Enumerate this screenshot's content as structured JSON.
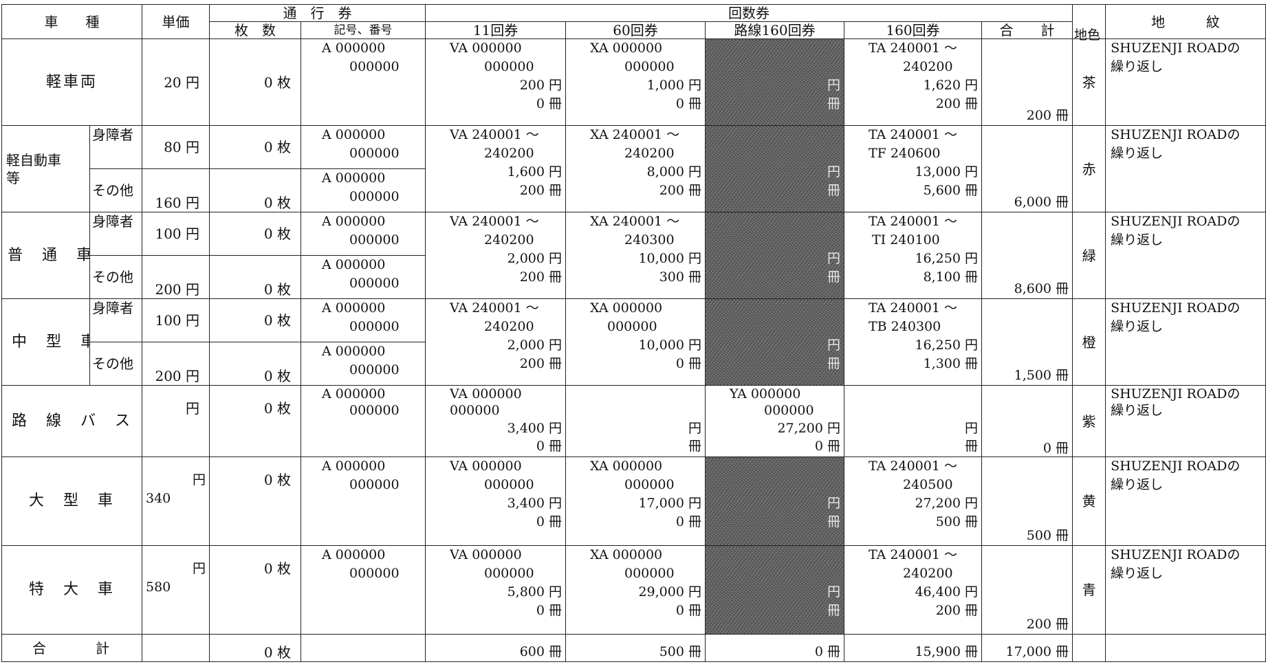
{
  "headers": {
    "vehicle_type": "車　　種",
    "unit_price": "単価",
    "pass_ticket": "通　行　券",
    "coupon": "回数券",
    "sheets": "枚　数",
    "code": "記号、番号",
    "t11": "11回券",
    "t60": "60回券",
    "route160": "路線160回券",
    "t160": "160回券",
    "total": "合　　計",
    "ground_color": "地色",
    "pattern": "地　　　紋"
  },
  "rows": {
    "keisharyo": {
      "label": "軽車両",
      "price": "20 円",
      "sheets": "0 枚",
      "code": [
        "A 000000",
        "000000"
      ],
      "t11": [
        "VA 000000",
        "000000",
        "200 円",
        "0 冊"
      ],
      "t60": [
        "XA 000000",
        "000000",
        "1,000 円",
        "0 冊"
      ],
      "route160": [
        "円",
        "冊"
      ],
      "t160": [
        "TA 240001 ～",
        "240200",
        "1,620 円",
        "200 冊"
      ],
      "total": "200 冊",
      "color": "茶",
      "pattern": [
        "SHUZENJI ROADの",
        "繰り返し"
      ]
    },
    "keijidosha": {
      "label": "軽自動車等",
      "label_line2": "等",
      "label_line1": "軽自動車",
      "sub1": "身障者",
      "sub2": "その他",
      "price1": "80 円",
      "price2": "160 円",
      "sheets1": "0 枚",
      "sheets2": "0 枚",
      "code1": [
        "A 000000",
        "000000"
      ],
      "code2": [
        "A 000000",
        "000000"
      ],
      "t11": [
        "VA 240001 ～",
        "240200",
        "1,600 円",
        "200 冊"
      ],
      "t60": [
        "XA 240001 ～",
        "240200",
        "8,000 円",
        "200 冊"
      ],
      "route160": [
        "円",
        "冊"
      ],
      "t160": [
        "TA 240001 ～",
        "TF 240600",
        "13,000 円",
        "5,600 冊"
      ],
      "total": "6,000 冊",
      "color": "赤",
      "pattern": [
        "SHUZENJI ROADの",
        "繰り返し"
      ]
    },
    "futsu": {
      "label": "普　通　車",
      "sub1": "身障者",
      "sub2": "その他",
      "price1": "100 円",
      "price2": "200 円",
      "sheets1": "0 枚",
      "sheets2": "0 枚",
      "code1": [
        "A 000000",
        "000000"
      ],
      "code2": [
        "A 000000",
        "000000"
      ],
      "t11": [
        "VA 240001 ～",
        "240200",
        "2,000 円",
        "200 冊"
      ],
      "t60": [
        "XA 240001 ～",
        "240300",
        "10,000 円",
        "300 冊"
      ],
      "route160": [
        "円",
        "冊"
      ],
      "t160": [
        "TA 240001 ～",
        "TI 240100",
        "16,250 円",
        "8,100 冊"
      ],
      "total": "8,600 冊",
      "color": "緑",
      "pattern": [
        "SHUZENJI ROADの",
        "繰り返し"
      ]
    },
    "chugata": {
      "label": "中　型　車",
      "sub1": "身障者",
      "sub2": "その他",
      "price1": "100 円",
      "price2": "200 円",
      "sheets1": "0 枚",
      "sheets2": "0 枚",
      "code1": [
        "A 000000",
        "000000"
      ],
      "code2": [
        "A 000000",
        "000000"
      ],
      "t11": [
        "VA 240001 ～",
        "240200",
        "2,000 円",
        "200 冊"
      ],
      "t60": [
        "XA 000000",
        "000000",
        "10,000 円",
        "0 冊"
      ],
      "route160": [
        "円",
        "冊"
      ],
      "t160": [
        "TA 240001 ～",
        "TB 240300",
        "16,250 円",
        "1,300 冊"
      ],
      "total": "1,500 冊",
      "color": "橙",
      "pattern": [
        "SHUZENJI ROADの",
        "繰り返し"
      ]
    },
    "rosen_bus": {
      "label": "路　線　バ　ス",
      "price": "円",
      "sheets": "0 枚",
      "code": [
        "A 000000",
        "000000"
      ],
      "t11": [
        "VA 000000",
        "000000",
        "3,400 円",
        "0 冊"
      ],
      "t60": [
        "",
        "",
        "円",
        "冊"
      ],
      "route160": [
        "YA 000000",
        "000000",
        "27,200 円",
        "0 冊"
      ],
      "t160": [
        "",
        "",
        "円",
        "冊"
      ],
      "total": "0 冊",
      "color": "紫",
      "pattern": [
        "SHUZENJI ROADの",
        "繰り返し"
      ]
    },
    "ogata": {
      "label": "大　型　車",
      "price_unit": "円",
      "price_value": "340",
      "sheets": "0 枚",
      "code": [
        "A 000000",
        "000000"
      ],
      "t11": [
        "VA 000000",
        "000000",
        "3,400 円",
        "0 冊"
      ],
      "t60": [
        "XA 000000",
        "000000",
        "17,000 円",
        "0 冊"
      ],
      "route160": [
        "円",
        "冊"
      ],
      "t160": [
        "TA 240001 ～",
        "240500",
        "27,200 円",
        "500 冊"
      ],
      "total": "500 冊",
      "color": "黄",
      "pattern": [
        "SHUZENJI ROADの",
        "繰り返し"
      ]
    },
    "tokudai": {
      "label": "特　大　車",
      "price_unit": "円",
      "price_value": "580",
      "sheets": "0 枚",
      "code": [
        "A 000000",
        "000000"
      ],
      "t11": [
        "VA 000000",
        "000000",
        "5,800 円",
        "0 冊"
      ],
      "t60": [
        "XA 000000",
        "000000",
        "29,000 円",
        "0 冊"
      ],
      "route160": [
        "円",
        "冊"
      ],
      "t160": [
        "TA 240001 ～",
        "240200",
        "46,400 円",
        "200 冊"
      ],
      "total": "200 冊",
      "color": "青",
      "pattern": [
        "SHUZENJI ROADの",
        "繰り返し"
      ]
    }
  },
  "totals": {
    "label": "合　　　計",
    "sheets": "0 枚",
    "t11": "600 冊",
    "t60": "500 冊",
    "route160": "0 冊",
    "t160": "15,900 冊",
    "total": "17,000 冊"
  },
  "colors": {
    "grid": "#222222",
    "redacted": "#5c5c5c",
    "ink": "#111111"
  }
}
